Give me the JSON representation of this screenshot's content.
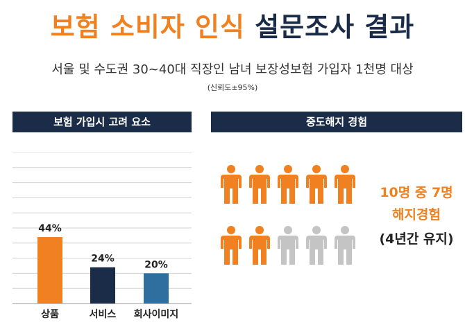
{
  "header": {
    "title_orange": "보험 소비자 인식",
    "title_navy": "설문조사 결과",
    "subtitle": "서울 및 수도권 30~40대 직장인 남녀 보장성보험 가입자 1천명 대상",
    "confidence": "(신뢰도±95%)"
  },
  "left_panel": {
    "header": "보험 가입시 고려 요소"
  },
  "right_panel": {
    "header": "중도해지 경험",
    "line1": "10명 중 7명",
    "line2": "해지경험",
    "line3": "(4년간 유지)",
    "total_people": 10,
    "highlighted_people": 7,
    "colors": {
      "highlight": "#f08020",
      "neutral": "#c4c4c4"
    }
  },
  "chart_data": {
    "type": "bar",
    "categories": [
      "상품",
      "서비스",
      "회사이미지"
    ],
    "values": [
      44,
      24,
      20
    ],
    "value_labels": [
      "44%",
      "24%",
      "20%"
    ],
    "colors": [
      "#f08020",
      "#1b2c48",
      "#2f6f9f"
    ],
    "ylim": [
      0,
      100
    ],
    "grid": true
  }
}
